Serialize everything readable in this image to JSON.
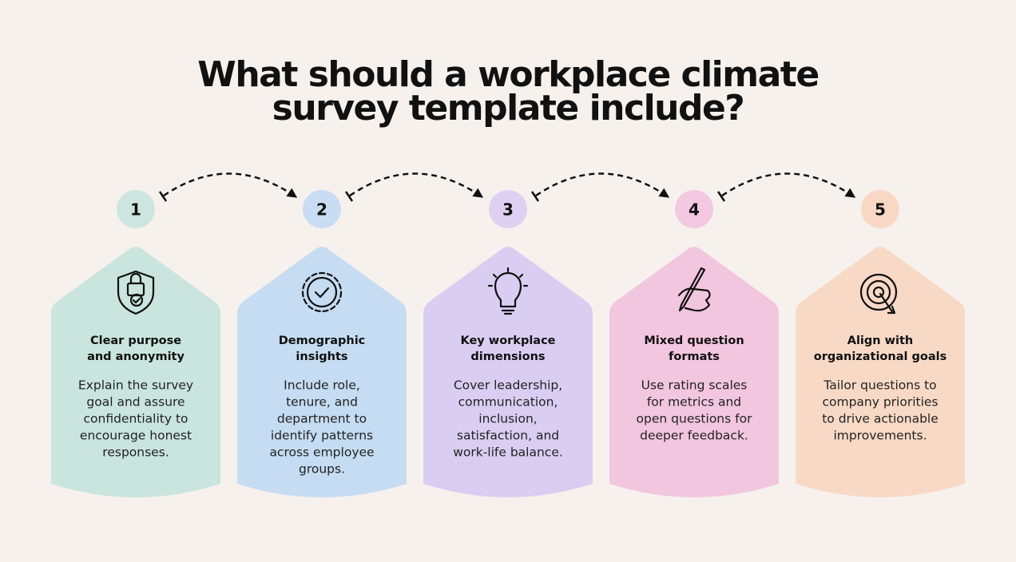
{
  "title": [
    "What should a workplace climate",
    "survey template include?"
  ],
  "steps": [
    {
      "number": "1",
      "title": [
        "Clear purpose",
        "and anonymity"
      ],
      "description": [
        "Explain the survey",
        "goal and assure",
        "confidentiality to",
        "encourage honest",
        "responses."
      ]
    },
    {
      "number": "2",
      "title": [
        "Demographic",
        "insights"
      ],
      "description": [
        "Include role,",
        "tenure, and",
        "department to",
        "identify patterns",
        "across employee",
        "groups."
      ]
    },
    {
      "number": "3",
      "title": [
        "Key workplace",
        "dimensions"
      ],
      "description": [
        "Cover leadership,",
        "communication,",
        "inclusion,",
        "satisfaction, and",
        "work-life balance."
      ]
    },
    {
      "number": "4",
      "title": [
        "Mixed question",
        "formats"
      ],
      "description": [
        "Use rating scales",
        "for metrics and",
        "open questions for",
        "deeper feedback."
      ]
    },
    {
      "number": "5",
      "title": [
        "Align with",
        "organizational goals"
      ],
      "description": [
        "Tailor questions to",
        "company priorities",
        "to drive actionable",
        "improvements."
      ]
    }
  ]
}
